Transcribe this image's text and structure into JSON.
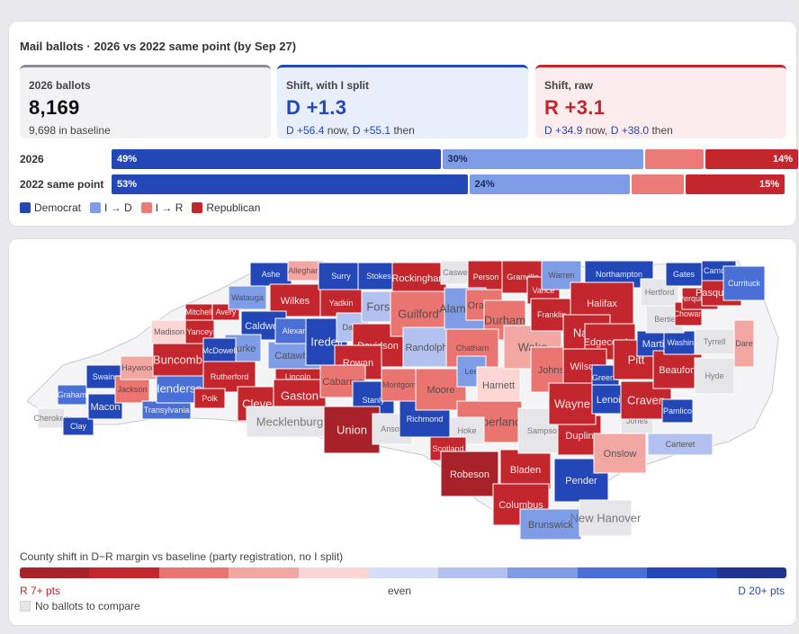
{
  "card1": {
    "title": "Mail ballots · 2026 vs 2022 same point (by Sep 27)",
    "stats": {
      "ballots": {
        "label": "2026 ballots",
        "value": "8,169",
        "sub": "9,698 in baseline"
      },
      "shift_split": {
        "label": "Shift, with I split",
        "value": "D +1.3",
        "now": "D +56.4",
        "now_suffix": " now, ",
        "then": "D +55.1",
        "then_suffix": " then"
      },
      "shift_raw": {
        "label": "Shift, raw",
        "value": "R +3.1",
        "now": "D +34.9",
        "now_suffix": " now, ",
        "then": "D +38.0",
        "then_suffix": " then"
      }
    },
    "bars": [
      {
        "label": "2026",
        "segments": [
          {
            "party": "Democrat",
            "share": 0.49,
            "text": "49%"
          },
          {
            "party": "I → D",
            "share": 0.3,
            "text": "30%"
          },
          {
            "party": "I → R",
            "share": 0.09,
            "text": ""
          },
          {
            "party": "Republican",
            "share": 0.14,
            "text": "14%"
          }
        ]
      },
      {
        "label": "2022 same point",
        "segments": [
          {
            "party": "Democrat",
            "share": 0.53,
            "text": "53%"
          },
          {
            "party": "I → D",
            "share": 0.24,
            "text": "24%"
          },
          {
            "party": "I → R",
            "share": 0.08,
            "text": ""
          },
          {
            "party": "Republican",
            "share": 0.15,
            "text": "15%"
          }
        ]
      }
    ],
    "legend": [
      {
        "label": "Democrat",
        "color": "#2447b7"
      },
      {
        "label": "I → D",
        "color": "#7f9ce6"
      },
      {
        "label": "I → R",
        "color": "#ec7b78"
      },
      {
        "label": "Republican",
        "color": "#c3272d"
      }
    ]
  },
  "colors": {
    "r3": "#a8222a",
    "r2": "#c3272d",
    "r1": "#e97470",
    "r0": "#f3a7a3",
    "rr": "#fbd6d4",
    "dd": "#d5dcf6",
    "d0": "#b2c1ef",
    "d1": "#7f9ce6",
    "d2": "#4a70d8",
    "d3": "#2447b7",
    "d4": "#1f3590",
    "na": "#e6e6ea"
  },
  "map": {
    "counties": [
      {
        "name": "Cherokee",
        "c": "na",
        "s": "s"
      },
      {
        "name": "Clay",
        "c": "d3",
        "s": "s"
      },
      {
        "name": "Graham",
        "c": "d2",
        "s": "s"
      },
      {
        "name": "Swain",
        "c": "d3",
        "s": "s"
      },
      {
        "name": "Macon",
        "c": "d3",
        "s": "m"
      },
      {
        "name": "Jackson",
        "c": "r1",
        "s": "s"
      },
      {
        "name": "Haywood",
        "c": "r0",
        "s": "s"
      },
      {
        "name": "Transylvania",
        "c": "d2",
        "s": "s"
      },
      {
        "name": "Henderson",
        "c": "d2",
        "s": "l"
      },
      {
        "name": "Buncombe",
        "c": "r2",
        "s": "l"
      },
      {
        "name": "Madison",
        "c": "rr",
        "s": "s"
      },
      {
        "name": "Yancey",
        "c": "r2",
        "s": "s"
      },
      {
        "name": "Mitchell",
        "c": "r2",
        "s": "s"
      },
      {
        "name": "Avery",
        "c": "r2",
        "s": "s"
      },
      {
        "name": "Watauga",
        "c": "d1",
        "s": "s"
      },
      {
        "name": "Ashe",
        "c": "d3",
        "s": "s"
      },
      {
        "name": "Alleghany",
        "c": "r0",
        "s": "s"
      },
      {
        "name": "Wilkes",
        "c": "r2",
        "s": "m"
      },
      {
        "name": "Caldwell",
        "c": "d3",
        "s": "m"
      },
      {
        "name": "Burke",
        "c": "d1",
        "s": "m"
      },
      {
        "name": "McDowell",
        "c": "d3",
        "s": "s"
      },
      {
        "name": "Rutherford",
        "c": "r2",
        "s": "s"
      },
      {
        "name": "Polk",
        "c": "r2",
        "s": "s"
      },
      {
        "name": "Cleveland",
        "c": "r2",
        "s": "l"
      },
      {
        "name": "Lincoln",
        "c": "r2",
        "s": "s"
      },
      {
        "name": "Gaston",
        "c": "r2",
        "s": "l"
      },
      {
        "name": "Catawba",
        "c": "d1",
        "s": "m"
      },
      {
        "name": "Alexander",
        "c": "d2",
        "s": "s"
      },
      {
        "name": "Iredell",
        "c": "d3",
        "s": "l"
      },
      {
        "name": "Mecklenburg",
        "c": "na",
        "s": "xl"
      },
      {
        "name": "Surry",
        "c": "d3",
        "s": "s"
      },
      {
        "name": "Yadkin",
        "c": "r2",
        "s": "s"
      },
      {
        "name": "Davie",
        "c": "d0",
        "s": "s"
      },
      {
        "name": "Stokes",
        "c": "d3",
        "s": "s"
      },
      {
        "name": "Forsyth",
        "c": "d0",
        "s": "l"
      },
      {
        "name": "Davidson",
        "c": "r2",
        "s": "m"
      },
      {
        "name": "Rowan",
        "c": "r2",
        "s": "m"
      },
      {
        "name": "Cabarrus",
        "c": "r1",
        "s": "m"
      },
      {
        "name": "Stanly",
        "c": "d3",
        "s": "s"
      },
      {
        "name": "Union",
        "c": "r3",
        "s": "l"
      },
      {
        "name": "Anson",
        "c": "na",
        "s": "s"
      },
      {
        "name": "Montgomery",
        "c": "r1",
        "s": "s"
      },
      {
        "name": "Rockingham",
        "c": "r2",
        "s": "m"
      },
      {
        "name": "Guilford",
        "c": "r1",
        "s": "l"
      },
      {
        "name": "Randolph",
        "c": "d0",
        "s": "m"
      },
      {
        "name": "Richmond",
        "c": "d3",
        "s": "s"
      },
      {
        "name": "Moore",
        "c": "r1",
        "s": "m"
      },
      {
        "name": "Caswell",
        "c": "na",
        "s": "s"
      },
      {
        "name": "Person",
        "c": "r2",
        "s": "s"
      },
      {
        "name": "Alamance",
        "c": "d1",
        "s": "l"
      },
      {
        "name": "Orange",
        "c": "r1",
        "s": "m"
      },
      {
        "name": "Durham",
        "c": "r1",
        "s": "l"
      },
      {
        "name": "Chatham",
        "c": "r1",
        "s": "s"
      },
      {
        "name": "Lee",
        "c": "d1",
        "s": "s"
      },
      {
        "name": "Harnett",
        "c": "rr",
        "s": "m"
      },
      {
        "name": "Wake",
        "c": "r0",
        "s": "l"
      },
      {
        "name": "Granville",
        "c": "r2",
        "s": "s"
      },
      {
        "name": "Vance",
        "c": "r2",
        "s": "s"
      },
      {
        "name": "Warren",
        "c": "d1",
        "s": "s"
      },
      {
        "name": "Franklin",
        "c": "r2",
        "s": "s"
      },
      {
        "name": "Johnston",
        "c": "r1",
        "s": "m"
      },
      {
        "name": "Cumberland",
        "c": "r1",
        "s": "l"
      },
      {
        "name": "Hoke",
        "c": "na",
        "s": "s"
      },
      {
        "name": "Scotland",
        "c": "r2",
        "s": "s"
      },
      {
        "name": "Robeson",
        "c": "r3",
        "s": "m"
      },
      {
        "name": "Bladen",
        "c": "r2",
        "s": "m"
      },
      {
        "name": "Columbus",
        "c": "r2",
        "s": "m"
      },
      {
        "name": "Sampson",
        "c": "na",
        "s": "s"
      },
      {
        "name": "Duplin",
        "c": "r2",
        "s": "m"
      },
      {
        "name": "Pender",
        "c": "d3",
        "s": "m"
      },
      {
        "name": "Brunswick",
        "c": "d1",
        "s": "m"
      },
      {
        "name": "New Hanover",
        "c": "na",
        "s": "l"
      },
      {
        "name": "Onslow",
        "c": "r0",
        "s": "m"
      },
      {
        "name": "Northampton",
        "c": "d3",
        "s": "s"
      },
      {
        "name": "Halifax",
        "c": "r2",
        "s": "m"
      },
      {
        "name": "Nash",
        "c": "r2",
        "s": "l"
      },
      {
        "name": "Edgecombe",
        "c": "r2",
        "s": "m"
      },
      {
        "name": "Wilson",
        "c": "r2",
        "s": "m"
      },
      {
        "name": "Wayne",
        "c": "r2",
        "s": "l"
      },
      {
        "name": "Greene",
        "c": "d3",
        "s": "s"
      },
      {
        "name": "Lenoir",
        "c": "d3",
        "s": "m"
      },
      {
        "name": "Jones",
        "c": "na",
        "s": "s"
      },
      {
        "name": "Craven",
        "c": "r2",
        "s": "l"
      },
      {
        "name": "Pamlico",
        "c": "d3",
        "s": "s"
      },
      {
        "name": "Carteret",
        "c": "d0",
        "s": "s"
      },
      {
        "name": "Pitt",
        "c": "r2",
        "s": "l"
      },
      {
        "name": "Martin",
        "c": "d3",
        "s": "m"
      },
      {
        "name": "Beaufort",
        "c": "r2",
        "s": "m"
      },
      {
        "name": "Hyde",
        "c": "na",
        "s": "s"
      },
      {
        "name": "Washington",
        "c": "d3",
        "s": "s"
      },
      {
        "name": "Tyrrell",
        "c": "na",
        "s": "s"
      },
      {
        "name": "Dare",
        "c": "r0",
        "s": "s"
      },
      {
        "name": "Bertie",
        "c": "na",
        "s": "s"
      },
      {
        "name": "Hertford",
        "c": "na",
        "s": "s"
      },
      {
        "name": "Gates",
        "c": "d3",
        "s": "s"
      },
      {
        "name": "Chowan",
        "c": "r2",
        "s": "s"
      },
      {
        "name": "Perquimans",
        "c": "r2",
        "s": "s"
      },
      {
        "name": "Pasquotank",
        "c": "r2",
        "s": "m"
      },
      {
        "name": "Camden",
        "c": "d3",
        "s": "s"
      },
      {
        "name": "Currituck",
        "c": "d2",
        "s": "s"
      }
    ]
  },
  "scale": {
    "title": "County shift in D−R margin vs baseline (party registration, no I split)",
    "colors": [
      "#a8222a",
      "#c3272d",
      "#e97470",
      "#f3a7a3",
      "#fbd6d4",
      "#d5dcf6",
      "#b2c1ef",
      "#7f9ce6",
      "#4a70d8",
      "#2447b7",
      "#1f3590"
    ],
    "left": "R 7+ pts",
    "mid": "even",
    "right": "D 20+ pts",
    "nodata": "No ballots to compare"
  }
}
